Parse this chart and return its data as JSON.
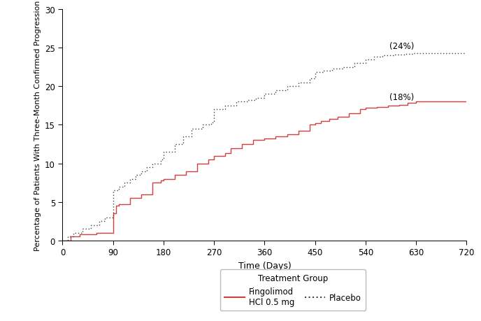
{
  "title": "",
  "xlabel": "Time (Days)",
  "ylabel": "Percentage of Patients With Three-Month Confirmed Progression",
  "xlim": [
    0,
    720
  ],
  "ylim": [
    0,
    30
  ],
  "xticks": [
    0,
    90,
    180,
    270,
    360,
    450,
    540,
    630,
    720
  ],
  "yticks": [
    0,
    5,
    10,
    15,
    20,
    25,
    30
  ],
  "fingolimod_x": [
    0,
    14,
    14,
    30,
    30,
    60,
    60,
    90,
    90,
    95,
    95,
    100,
    100,
    120,
    120,
    140,
    140,
    160,
    160,
    175,
    175,
    180,
    180,
    200,
    200,
    220,
    220,
    240,
    240,
    260,
    260,
    270,
    270,
    290,
    290,
    300,
    300,
    320,
    320,
    340,
    340,
    360,
    360,
    380,
    380,
    400,
    400,
    420,
    420,
    440,
    440,
    450,
    450,
    460,
    460,
    475,
    475,
    490,
    490,
    510,
    510,
    530,
    530,
    540,
    540,
    560,
    560,
    580,
    580,
    600,
    600,
    615,
    615,
    630,
    630,
    640,
    640,
    660,
    660,
    680,
    680,
    700,
    700,
    720
  ],
  "fingolimod_y": [
    0,
    0,
    0.5,
    0.5,
    0.8,
    0.8,
    1.0,
    1.0,
    3.5,
    3.5,
    4.5,
    4.5,
    4.7,
    4.7,
    5.5,
    5.5,
    6.0,
    6.0,
    7.5,
    7.5,
    7.8,
    7.8,
    8.0,
    8.0,
    8.5,
    8.5,
    9.0,
    9.0,
    10.0,
    10.0,
    10.5,
    10.5,
    11.0,
    11.0,
    11.3,
    11.3,
    12.0,
    12.0,
    12.5,
    12.5,
    13.0,
    13.0,
    13.2,
    13.2,
    13.5,
    13.5,
    13.8,
    13.8,
    14.2,
    14.2,
    15.0,
    15.0,
    15.2,
    15.2,
    15.5,
    15.5,
    15.8,
    15.8,
    16.0,
    16.0,
    16.5,
    16.5,
    17.0,
    17.0,
    17.2,
    17.2,
    17.3,
    17.3,
    17.5,
    17.5,
    17.6,
    17.6,
    17.8,
    17.8,
    18.0,
    18.0,
    18.0,
    18.0,
    18.0,
    18.0,
    18.0,
    18.0,
    18.0,
    18.0
  ],
  "placebo_x": [
    0,
    10,
    10,
    20,
    20,
    35,
    35,
    50,
    50,
    65,
    65,
    75,
    75,
    90,
    90,
    100,
    100,
    110,
    110,
    120,
    120,
    130,
    130,
    140,
    140,
    150,
    150,
    160,
    160,
    175,
    175,
    180,
    180,
    200,
    200,
    215,
    215,
    230,
    230,
    250,
    250,
    265,
    265,
    270,
    270,
    290,
    290,
    310,
    310,
    330,
    330,
    345,
    345,
    360,
    360,
    380,
    380,
    400,
    400,
    420,
    420,
    440,
    440,
    450,
    450,
    465,
    465,
    480,
    480,
    500,
    500,
    520,
    520,
    540,
    540,
    555,
    555,
    570,
    570,
    590,
    590,
    610,
    610,
    625,
    625,
    640,
    640,
    660,
    660,
    675,
    675,
    690,
    690,
    710,
    710,
    720
  ],
  "placebo_y": [
    0,
    0,
    0.5,
    0.5,
    1.0,
    1.0,
    1.5,
    1.5,
    2.0,
    2.0,
    2.5,
    2.5,
    3.0,
    3.0,
    6.5,
    6.5,
    7.0,
    7.0,
    7.5,
    7.5,
    8.0,
    8.0,
    8.5,
    8.5,
    9.0,
    9.0,
    9.5,
    9.5,
    10.0,
    10.0,
    10.5,
    10.5,
    11.5,
    11.5,
    12.5,
    12.5,
    13.5,
    13.5,
    14.5,
    14.5,
    15.0,
    15.0,
    15.3,
    15.3,
    17.0,
    17.0,
    17.5,
    17.5,
    18.0,
    18.0,
    18.2,
    18.2,
    18.5,
    18.5,
    19.0,
    19.0,
    19.5,
    19.5,
    20.0,
    20.0,
    20.5,
    20.5,
    21.0,
    21.0,
    21.8,
    21.8,
    22.0,
    22.0,
    22.3,
    22.3,
    22.5,
    22.5,
    23.0,
    23.0,
    23.5,
    23.5,
    23.8,
    23.8,
    24.0,
    24.0,
    24.1,
    24.1,
    24.2,
    24.2,
    24.3,
    24.3,
    24.3,
    24.3,
    24.3,
    24.3,
    24.3,
    24.3,
    24.3,
    24.3,
    24.3,
    24.3
  ],
  "fingolimod_color": "#d04040",
  "placebo_color": "#404040",
  "annotation_fingolimod": "(18%)",
  "annotation_placebo": "(24%)",
  "ann_fingo_x": 583,
  "ann_fingo_y": 18.6,
  "ann_placebo_x": 583,
  "ann_placebo_y": 25.2,
  "legend_title": "Treatment Group",
  "legend_fingolimod": "Fingolimod\nHCl 0.5 mg",
  "legend_placebo": "Placebo",
  "background_color": "#ffffff"
}
